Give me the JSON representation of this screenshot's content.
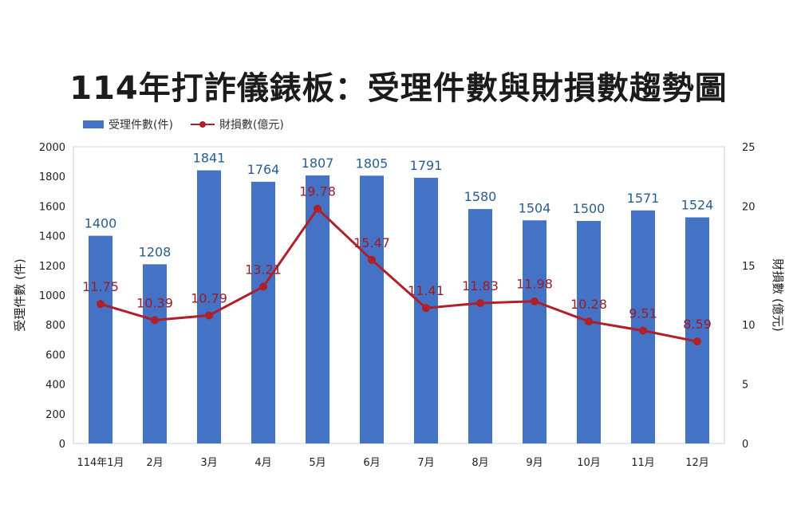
{
  "title": "114年打詐儀錶板：受理件數與財損數趨勢圖",
  "legend": {
    "bars": "受理件數(件)",
    "line": "財損數(億元)"
  },
  "colors": {
    "bar": "#4472c4",
    "line": "#b0202a",
    "bar_label": "#2a5d8f",
    "line_label": "#9b1c2b"
  },
  "chart_data": {
    "type": "bar",
    "categories": [
      "114年1月",
      "2月",
      "3月",
      "4月",
      "5月",
      "6月",
      "7月",
      "8月",
      "9月",
      "10月",
      "11月",
      "12月"
    ],
    "series": [
      {
        "name": "受理件數(件)",
        "type": "bar",
        "axis": "left",
        "values": [
          1400,
          1208,
          1841,
          1764,
          1807,
          1805,
          1791,
          1580,
          1504,
          1500,
          1571,
          1524
        ],
        "labels": [
          "1400",
          "1208",
          "1841",
          "1764",
          "1807",
          "1805",
          "1791",
          "1580",
          "1504",
          "1500",
          "1571",
          "1524"
        ]
      },
      {
        "name": "財損數(億元)",
        "type": "line",
        "axis": "right",
        "values": [
          11.75,
          10.39,
          10.79,
          13.21,
          19.78,
          15.47,
          11.41,
          11.83,
          11.98,
          10.28,
          9.51,
          8.59
        ],
        "labels": [
          "11.75",
          "10.39",
          "10.79",
          "13.21",
          "19.78",
          "15.47",
          "11.41",
          "11.83",
          "11.98",
          "10.28",
          "9.51",
          "8.59"
        ]
      }
    ],
    "ylabel": "受理件數 (件)",
    "y2label": "財損數 (億元)",
    "ylim": [
      0,
      2000
    ],
    "y2lim": [
      0,
      25
    ],
    "yticks": [
      "0",
      "200",
      "400",
      "600",
      "800",
      "1000",
      "1200",
      "1400",
      "1600",
      "1800",
      "2000"
    ],
    "y2ticks": [
      "0",
      "5",
      "10",
      "15",
      "20",
      "25"
    ],
    "grid": false,
    "legend_position": "top-left"
  }
}
